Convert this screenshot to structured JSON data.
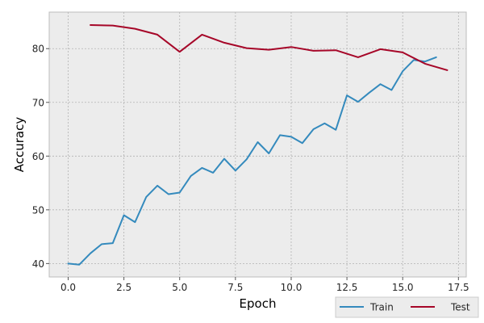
{
  "chart_data": {
    "type": "line",
    "title": "",
    "xlabel": "Epoch",
    "ylabel": "Accuracy",
    "xlim": [
      -0.85,
      17.85
    ],
    "ylim": [
      37.5,
      86.8
    ],
    "xticks": [
      0.0,
      2.5,
      5.0,
      7.5,
      10.0,
      12.5,
      15.0,
      17.5
    ],
    "xtick_labels": [
      "0.0",
      "2.5",
      "5.0",
      "7.5",
      "10.0",
      "12.5",
      "15.0",
      "17.5"
    ],
    "yticks": [
      40,
      50,
      60,
      70,
      80
    ],
    "ytick_labels": [
      "40",
      "50",
      "60",
      "70",
      "80"
    ],
    "grid": true,
    "legend_position": "lower-right",
    "background": "#ececec",
    "series": [
      {
        "name": "Train",
        "color": "#348abd",
        "x": [
          0,
          0.5,
          1,
          1.5,
          2,
          2.5,
          3,
          3.5,
          4,
          4.5,
          5,
          5.5,
          6,
          6.5,
          7,
          7.5,
          8,
          8.5,
          9,
          9.5,
          10,
          10.5,
          11,
          11.5,
          12,
          12.5,
          13,
          13.5,
          14,
          14.5,
          15,
          15.5,
          16,
          16.5
        ],
        "y": [
          40.0,
          39.8,
          41.9,
          43.6,
          43.8,
          49.0,
          47.7,
          52.4,
          54.5,
          52.9,
          53.2,
          56.3,
          57.8,
          56.9,
          59.5,
          57.3,
          59.4,
          62.6,
          60.5,
          63.9,
          63.6,
          62.4,
          65.0,
          66.1,
          64.9,
          71.3,
          70.1,
          71.8,
          73.4,
          72.3,
          75.8,
          77.9,
          77.6,
          78.4
        ]
      },
      {
        "name": "Test",
        "color": "#a60628",
        "x": [
          1,
          2,
          3,
          4,
          5,
          6,
          7,
          8,
          9,
          10,
          11,
          12,
          13,
          14,
          15,
          16,
          17
        ],
        "y": [
          84.4,
          84.3,
          83.7,
          82.6,
          79.4,
          82.6,
          81.1,
          80.1,
          79.8,
          80.3,
          79.6,
          79.7,
          78.4,
          79.9,
          79.3,
          77.2,
          76.0
        ]
      }
    ]
  }
}
